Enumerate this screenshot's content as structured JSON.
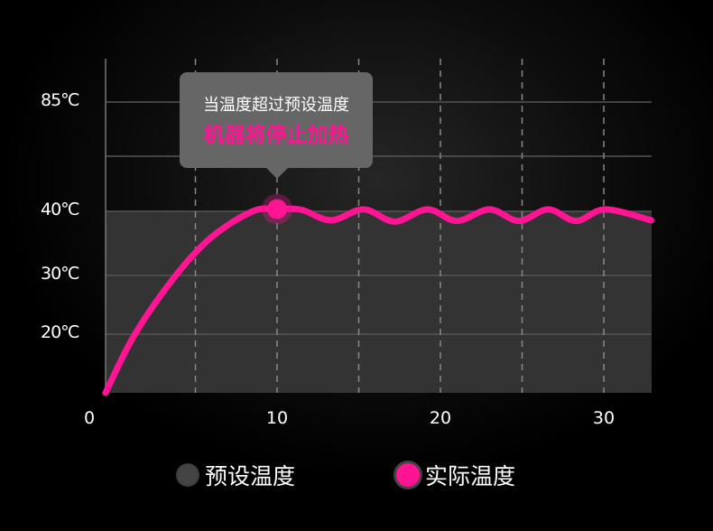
{
  "chart_data": {
    "type": "line",
    "title": "",
    "xlabel": "",
    "ylabel": "",
    "x_ticks": [
      "0",
      "10",
      "20",
      "30"
    ],
    "y_ticks": [
      {
        "value": 20,
        "label": "20℃"
      },
      {
        "value": 30,
        "label": "30℃"
      },
      {
        "value": 40,
        "label": "40℃"
      },
      {
        "value": 62.5,
        "label": ""
      },
      {
        "value": 85,
        "label": "85℃"
      }
    ],
    "x_gridlines": [
      5,
      10,
      15,
      20,
      25,
      30
    ],
    "xlim": [
      -0.5,
      32.9
    ],
    "grid": true,
    "legend_placement": "bottom",
    "series": [
      {
        "name": "预设温度",
        "color": "#333333",
        "type": "area",
        "values": [
          [
            -0.5,
            40
          ],
          [
            32.9,
            40
          ]
        ]
      },
      {
        "name": "实际温度",
        "color": "#ff1493",
        "type": "line",
        "values": [
          [
            -0.5,
            10
          ],
          [
            1.3,
            20
          ],
          [
            3.8,
            30
          ],
          [
            6,
            36
          ],
          [
            8.5,
            40
          ],
          [
            10,
            40.9
          ],
          [
            11.5,
            40.6
          ],
          [
            13.3,
            38.6
          ],
          [
            15.3,
            40.8
          ],
          [
            17.2,
            38.4
          ],
          [
            19.2,
            40.8
          ],
          [
            21,
            38.5
          ],
          [
            23,
            40.8
          ],
          [
            24.8,
            38.5
          ],
          [
            26.6,
            40.8
          ],
          [
            28.3,
            38.5
          ],
          [
            30.1,
            40.8
          ],
          [
            32.9,
            38.6
          ]
        ]
      }
    ],
    "annotation": {
      "x": 10,
      "y": 40.9,
      "line1": "当温度超过预设温度",
      "line2": "机器将停止加热"
    }
  }
}
